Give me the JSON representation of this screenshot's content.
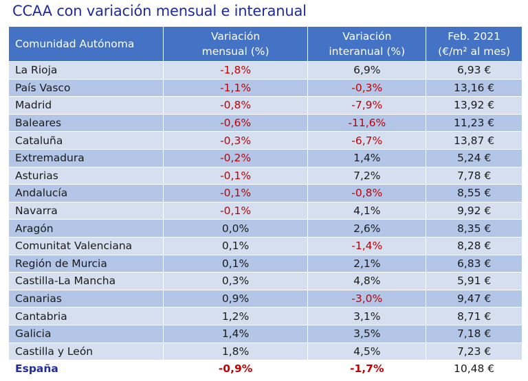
{
  "title": "CCAA con variación mensual e interanual",
  "table": {
    "headers": {
      "region": "Comunidad Autónoma",
      "monthly_line1": "Variación",
      "monthly_line2": "mensual (%)",
      "annual_line1": "Variación",
      "annual_line2": "interanual (%)",
      "price_line1": "Feb. 2021",
      "price_line2": "(€/m² al mes)"
    },
    "rows": [
      {
        "region": "La Rioja",
        "monthly": "-1,8%",
        "annual": "6,9%",
        "price": "6,93 €"
      },
      {
        "region": "País Vasco",
        "monthly": "-1,1%",
        "annual": "-0,3%",
        "price": "13,16 €"
      },
      {
        "region": "Madrid",
        "monthly": "-0,8%",
        "annual": "-7,9%",
        "price": "13,92 €"
      },
      {
        "region": "Baleares",
        "monthly": "-0,6%",
        "annual": "-11,6%",
        "price": "11,23 €"
      },
      {
        "region": "Cataluña",
        "monthly": "-0,3%",
        "annual": "-6,7%",
        "price": "13,87 €"
      },
      {
        "region": "Extremadura",
        "monthly": "-0,2%",
        "annual": "1,4%",
        "price": "5,24 €"
      },
      {
        "region": "Asturias",
        "monthly": "-0,1%",
        "annual": "7,2%",
        "price": "7,78 €"
      },
      {
        "region": "Andalucía",
        "monthly": "-0,1%",
        "annual": "-0,8%",
        "price": "8,55 €"
      },
      {
        "region": "Navarra",
        "monthly": "-0,1%",
        "annual": "4,1%",
        "price": "9,92 €"
      },
      {
        "region": "Aragón",
        "monthly": "0,0%",
        "annual": "2,6%",
        "price": "8,35 €"
      },
      {
        "region": "Comunitat Valenciana",
        "monthly": "0,1%",
        "annual": "-1,4%",
        "price": "8,28 €"
      },
      {
        "region": "Región de Murcia",
        "monthly": "0,1%",
        "annual": "2,1%",
        "price": "6,83 €"
      },
      {
        "region": "Castilla-La Mancha",
        "monthly": "0,3%",
        "annual": "4,8%",
        "price": "5,91 €"
      },
      {
        "region": "Canarias",
        "monthly": "0,9%",
        "annual": "-3,0%",
        "price": "9,47 €"
      },
      {
        "region": "Cantabria",
        "monthly": "1,2%",
        "annual": "3,1%",
        "price": "8,71 €"
      },
      {
        "region": "Galicia",
        "monthly": "1,4%",
        "annual": "3,5%",
        "price": "7,18 €"
      },
      {
        "region": "Castilla y León",
        "monthly": "1,8%",
        "annual": "4,5%",
        "price": "7,23 €"
      }
    ],
    "total": {
      "region": "España",
      "monthly": "-0,9%",
      "annual": "-1,7%",
      "price": "10,48 €"
    }
  },
  "colors": {
    "title": "#1f2a9c",
    "header_bg": "#4472c4",
    "row_light": "#d6dff0",
    "row_dark": "#b4c6e7",
    "negative": "#c00000"
  }
}
